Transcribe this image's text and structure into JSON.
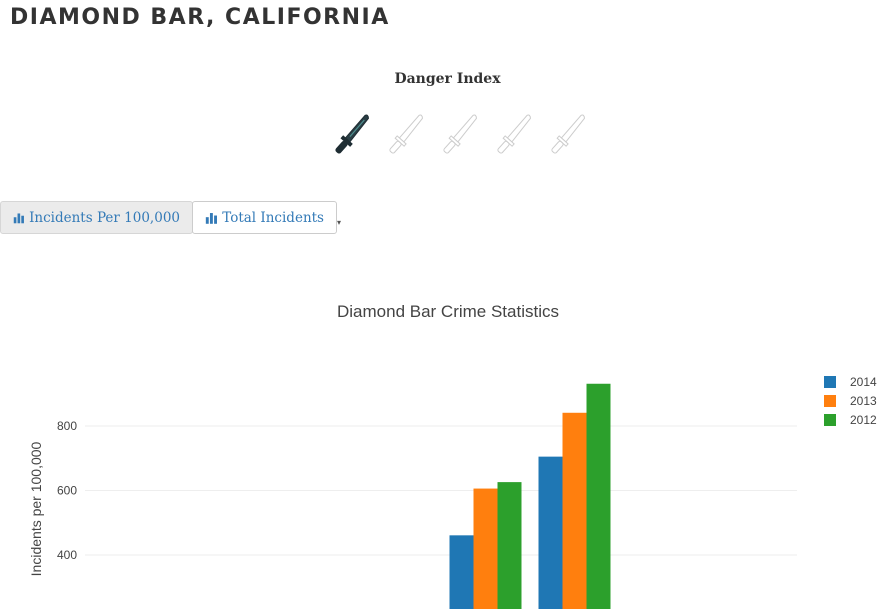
{
  "page": {
    "title": "DIAMOND BAR, CALIFORNIA"
  },
  "danger": {
    "label": "Danger Index",
    "rating": 1,
    "max": 5,
    "active_color": "#1e2d33",
    "inactive_color": "#cccccc",
    "icon": "knife-icon"
  },
  "tabs": [
    {
      "label": "Incidents Per 100,000",
      "icon": "bar-chart-icon",
      "active": true
    },
    {
      "label": "Total Incidents",
      "icon": "bar-chart-icon",
      "active": false
    }
  ],
  "colors": {
    "link": "#337ab7"
  },
  "chart_data": {
    "type": "bar",
    "title": "Diamond Bar Crime Statistics",
    "ylabel": "Incidents per 100,000",
    "xlabel": "",
    "ylim": [
      245,
      1000
    ],
    "yticks": [
      400,
      600,
      800
    ],
    "grid": true,
    "legend_position": "top-right",
    "categories": [
      "",
      "",
      "",
      "",
      "",
      "",
      "",
      ""
    ],
    "series": [
      {
        "name": "2014",
        "color": "#1f77b4",
        "values": [
          null,
          null,
          null,
          null,
          461,
          705,
          null,
          null
        ]
      },
      {
        "name": "2013",
        "color": "#ff7f0e",
        "values": [
          null,
          null,
          null,
          null,
          606,
          841,
          null,
          null
        ]
      },
      {
        "name": "2012",
        "color": "#2ca02c",
        "values": [
          null,
          null,
          null,
          null,
          626,
          931,
          null,
          null
        ]
      }
    ]
  }
}
